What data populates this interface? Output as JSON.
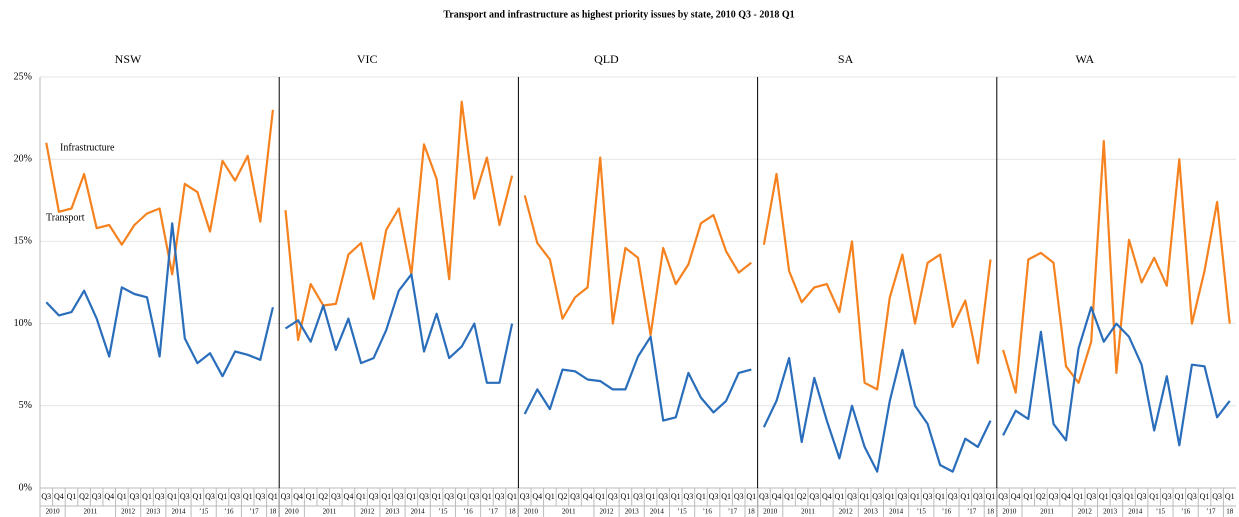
{
  "chart_data": {
    "type": "line",
    "title": "Transport and infrastructure as highest priority issues by state, 2010 Q3 - 2018 Q1",
    "categories": [
      "Q3",
      "Q4",
      "Q1",
      "Q2",
      "Q3",
      "Q4",
      "Q1",
      "Q3",
      "Q1",
      "Q3",
      "Q1",
      "Q3",
      "Q1",
      "Q3",
      "Q1",
      "Q3",
      "Q1",
      "Q3",
      "Q1"
    ],
    "category_groups": [
      {
        "label": "2010",
        "count": 2
      },
      {
        "label": "2011",
        "count": 4
      },
      {
        "label": "2012",
        "count": 2
      },
      {
        "label": "2013",
        "count": 2
      },
      {
        "label": "2014",
        "count": 2
      },
      {
        "label": "’15",
        "count": 2
      },
      {
        "label": "’16",
        "count": 2
      },
      {
        "label": "’17",
        "count": 2
      },
      {
        "label": "18",
        "count": 1
      }
    ],
    "ylim": [
      0,
      25
    ],
    "yticks": [
      {
        "value": 0,
        "label": "0%"
      },
      {
        "value": 5,
        "label": "5%"
      },
      {
        "value": 10,
        "label": "10%"
      },
      {
        "value": 15,
        "label": "15%"
      },
      {
        "value": 20,
        "label": "20%"
      },
      {
        "value": 25,
        "label": "25%"
      }
    ],
    "grid": true,
    "series": [
      {
        "name": "Infrastructure",
        "color": "#f5821f"
      },
      {
        "name": "Transport",
        "color": "#2a6ebb"
      }
    ],
    "panels": [
      {
        "title": "NSW",
        "values": [
          [
            21,
            16.8,
            17,
            19.1,
            15.8,
            16,
            14.8,
            16,
            16.7,
            17,
            13,
            18.5,
            18,
            15.6,
            19.9,
            18.7,
            20.2,
            16.2,
            23
          ],
          [
            11.3,
            10.5,
            10.7,
            12,
            10.3,
            8,
            12.2,
            11.8,
            11.6,
            8,
            16.1,
            9.1,
            7.6,
            8.2,
            6.8,
            8.3,
            8.1,
            7.8,
            11
          ]
        ]
      },
      {
        "title": "VIC",
        "values": [
          [
            16.9,
            9,
            12.4,
            11.1,
            11.2,
            14.2,
            14.9,
            11.5,
            15.7,
            17,
            13,
            20.9,
            18.8,
            12.7,
            23.5,
            17.6,
            20.1,
            16,
            19
          ],
          [
            9.7,
            10.2,
            8.9,
            11.1,
            8.4,
            10.3,
            7.6,
            7.9,
            9.6,
            12,
            13,
            8.3,
            10.6,
            7.9,
            8.6,
            10,
            6.4,
            6.4,
            10
          ]
        ]
      },
      {
        "title": "QLD",
        "values": [
          [
            17.8,
            14.9,
            13.9,
            10.3,
            11.6,
            12.2,
            20.1,
            10,
            14.6,
            14,
            9.3,
            14.6,
            12.4,
            13.6,
            16.1,
            16.6,
            14.4,
            13.1,
            13.7
          ],
          [
            4.5,
            6,
            4.8,
            7.2,
            7.1,
            6.6,
            6.5,
            6,
            6,
            8,
            9.2,
            4.1,
            4.3,
            7,
            5.5,
            4.6,
            5.3,
            7,
            7.2
          ]
        ]
      },
      {
        "title": "SA",
        "values": [
          [
            14.8,
            19.1,
            13.2,
            11.3,
            12.2,
            12.4,
            10.7,
            15,
            6.4,
            6,
            11.6,
            14.2,
            10,
            13.7,
            14.2,
            9.8,
            11.4,
            7.6,
            13.9
          ],
          [
            3.7,
            5.3,
            7.9,
            2.8,
            6.7,
            4.1,
            1.8,
            5,
            2.5,
            1,
            5.3,
            8.4,
            5,
            3.9,
            1.4,
            1,
            3,
            2.5,
            4.1
          ]
        ]
      },
      {
        "title": "WA",
        "values": [
          [
            8.4,
            5.8,
            13.9,
            14.3,
            13.7,
            7.4,
            6.4,
            8.9,
            21.1,
            7,
            15.1,
            12.5,
            14,
            12.3,
            20,
            10,
            13.2,
            17.4,
            10
          ],
          [
            3.2,
            4.7,
            4.2,
            9.5,
            3.9,
            2.9,
            8.5,
            11,
            8.9,
            10,
            9.2,
            7.5,
            3.5,
            6.8,
            2.6,
            7.5,
            7.4,
            4.3,
            5.3
          ]
        ]
      }
    ]
  }
}
